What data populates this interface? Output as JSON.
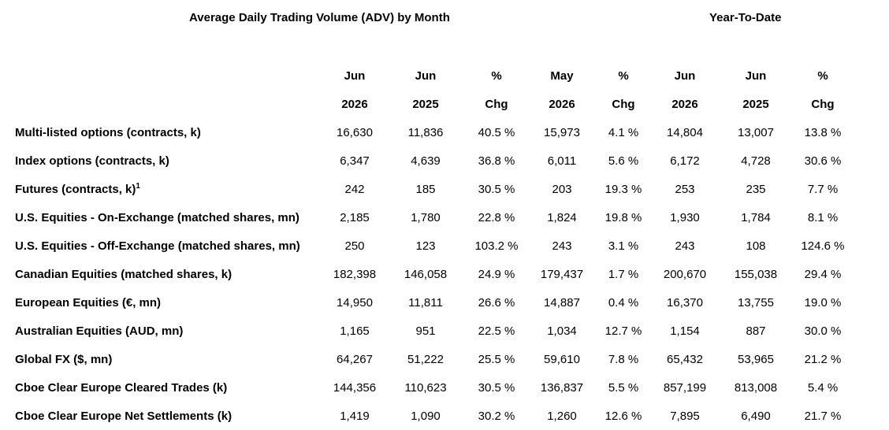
{
  "titles": {
    "adv": "Average Daily Trading Volume (ADV) by Month",
    "ytd": "Year-To-Date"
  },
  "header": {
    "row1": [
      "Jun",
      "Jun",
      "%",
      "May",
      "%",
      "Jun",
      "Jun",
      "%"
    ],
    "row2": [
      "2026",
      "2025",
      "Chg",
      "2026",
      "Chg",
      "2026",
      "2025",
      "Chg"
    ]
  },
  "rows": [
    {
      "label": "Multi-listed options (contracts, k)",
      "sup": "",
      "values": [
        "16,630",
        "11,836",
        "40.5 %",
        "15,973",
        "4.1 %",
        "14,804",
        "13,007",
        "13.8 %"
      ]
    },
    {
      "label": "Index options (contracts, k)",
      "sup": "",
      "values": [
        "6,347",
        "4,639",
        "36.8 %",
        "6,011",
        "5.6 %",
        "6,172",
        "4,728",
        "30.6 %"
      ]
    },
    {
      "label": "Futures (contracts, k)",
      "sup": "1",
      "values": [
        "242",
        "185",
        "30.5 %",
        "203",
        "19.3 %",
        "253",
        "235",
        "7.7 %"
      ]
    },
    {
      "label": "U.S. Equities - On-Exchange (matched shares, mn)",
      "sup": "",
      "values": [
        "2,185",
        "1,780",
        "22.8 %",
        "1,824",
        "19.8 %",
        "1,930",
        "1,784",
        "8.1 %"
      ]
    },
    {
      "label": "U.S. Equities - Off-Exchange (matched shares, mn)",
      "sup": "",
      "values": [
        "250",
        "123",
        "103.2 %",
        "243",
        "3.1 %",
        "243",
        "108",
        "124.6 %"
      ]
    },
    {
      "label": "Canadian Equities (matched shares, k)",
      "sup": "",
      "values": [
        "182,398",
        "146,058",
        "24.9 %",
        "179,437",
        "1.7 %",
        "200,670",
        "155,038",
        "29.4 %"
      ]
    },
    {
      "label": "European Equities (€, mn)",
      "sup": "",
      "values": [
        "14,950",
        "11,811",
        "26.6 %",
        "14,887",
        "0.4 %",
        "16,370",
        "13,755",
        "19.0 %"
      ]
    },
    {
      "label": "Australian Equities (AUD, mn)",
      "sup": "",
      "values": [
        "1,165",
        "951",
        "22.5 %",
        "1,034",
        "12.7 %",
        "1,154",
        "887",
        "30.0 %"
      ]
    },
    {
      "label": "Global FX ($, mn)",
      "sup": "",
      "values": [
        "64,267",
        "51,222",
        "25.5 %",
        "59,610",
        "7.8 %",
        "65,432",
        "53,965",
        "21.2 %"
      ]
    },
    {
      "label": "Cboe Clear Europe Cleared Trades (k)",
      "sup": "",
      "values": [
        "144,356",
        "110,623",
        "30.5 %",
        "136,837",
        "5.5 %",
        "857,199",
        "813,008",
        "5.4 %"
      ]
    },
    {
      "label": "Cboe Clear Europe Net Settlements (k)",
      "sup": "",
      "values": [
        "1,419",
        "1,090",
        "30.2 %",
        "1,260",
        "12.6 %",
        "7,895",
        "6,490",
        "21.7 %"
      ]
    }
  ]
}
